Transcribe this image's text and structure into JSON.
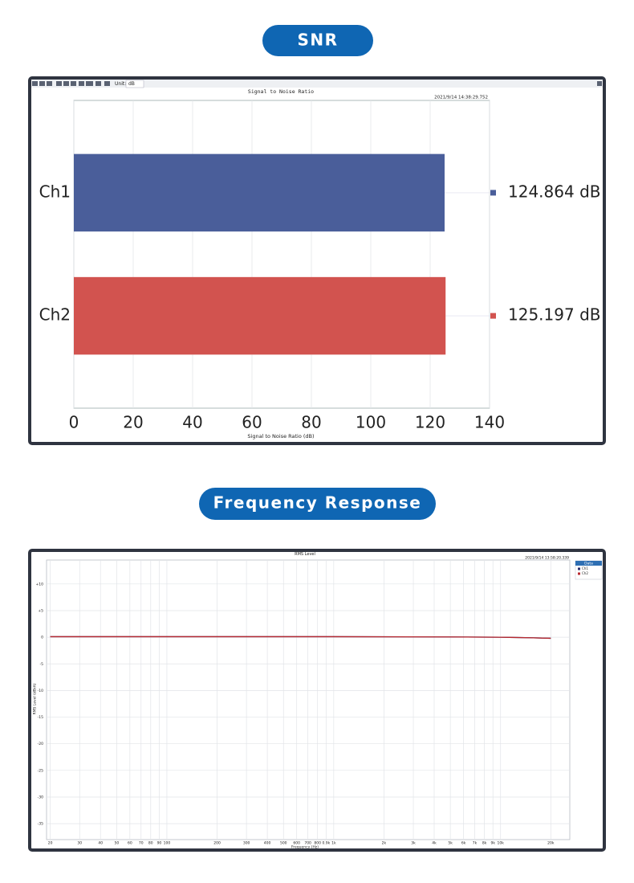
{
  "headings": [
    "SNR",
    "Frequency Response"
  ],
  "chart_data": [
    {
      "type": "hbar",
      "title": "Signal to Noise Ratio",
      "timestamp": "2021/9/14 14:38:29.752",
      "toolbar": {
        "unit_label": "Unit:",
        "unit": "dB"
      },
      "categories": [
        "Ch1",
        "Ch2"
      ],
      "values": [
        124.864,
        125.197
      ],
      "value_labels": [
        "124.864 dB",
        "125.197 dB"
      ],
      "colors": [
        "#4a5e9a",
        "#d2534f"
      ],
      "xlabel": "Signal to Noise Ratio (dB)",
      "xlim": [
        0,
        140
      ],
      "xticks": [
        0,
        20,
        40,
        60,
        80,
        100,
        120,
        140
      ],
      "grid": true
    },
    {
      "type": "line",
      "title": "RMS Level",
      "timestamp": "2021/9/14 13:58:20.339",
      "xscale": "log",
      "xlabel": "Frequency (Hz)",
      "ylabel": "RMS Level (dBrA)",
      "legend_title": "Data",
      "legend": "outside-right",
      "grid": true,
      "x": [
        20,
        100,
        1000,
        5000,
        10000,
        15000,
        20000
      ],
      "series": [
        {
          "name": "Ch1",
          "color": "#2a2f6e",
          "values": [
            0.1,
            0.1,
            0.1,
            0.05,
            0,
            -0.1,
            -0.2
          ]
        },
        {
          "name": "Ch2",
          "color": "#b8282e",
          "values": [
            0.1,
            0.1,
            0.1,
            0.05,
            0,
            -0.1,
            -0.2
          ]
        }
      ],
      "xlim": [
        19,
        26000
      ],
      "xticks": [
        20,
        30,
        40,
        50,
        60,
        70,
        80,
        90,
        100,
        200,
        300,
        400,
        500,
        600,
        700,
        800,
        {
          "value": 900,
          "label": "0.9k"
        },
        {
          "value": 1000,
          "label": "1k"
        },
        {
          "value": 2000,
          "label": "2k"
        },
        {
          "value": 3000,
          "label": "3k"
        },
        {
          "value": 4000,
          "label": "4k"
        },
        {
          "value": 5000,
          "label": "5k"
        },
        {
          "value": 6000,
          "label": "6k"
        },
        {
          "value": 7000,
          "label": "7k"
        },
        {
          "value": 8000,
          "label": "8k"
        },
        {
          "value": 9000,
          "label": "9k"
        },
        {
          "value": 10000,
          "label": "10k"
        },
        {
          "value": 20000,
          "label": "20k"
        }
      ],
      "ylim": [
        -38,
        14.5
      ],
      "yticks": [
        {
          "value": 10,
          "label": "+10"
        },
        {
          "value": 5,
          "label": "+5"
        },
        0,
        -5,
        -10,
        -15,
        -20,
        -25,
        -30,
        -35
      ]
    }
  ]
}
